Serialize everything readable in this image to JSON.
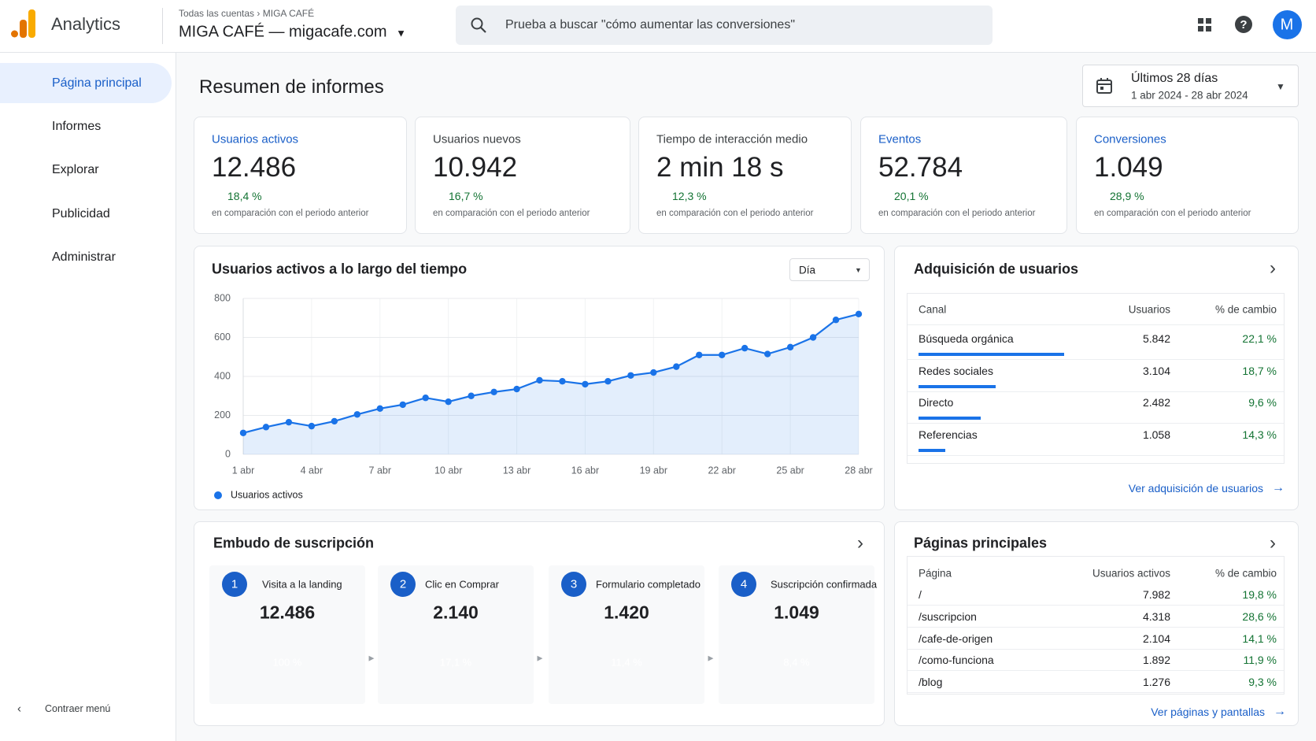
{
  "header": {
    "app": "Analytics",
    "breadcrumb": [
      "Todas las cuentas",
      "MIGA CAFÉ"
    ],
    "property": "MIGA CAFÉ — migacafe.com",
    "search_placeholder": "Prueba a buscar \"cómo aumentar las conversiones\"",
    "avatar": "M"
  },
  "nav": {
    "items": [
      "Página principal",
      "Informes",
      "Explorar",
      "Publicidad",
      "Administrar"
    ],
    "collapse": "Contraer menú"
  },
  "page": {
    "title": "Resumen de informes",
    "date_range": {
      "label": "Últimos 28 días",
      "dates": "1 abr 2024 - 28 abr 2024"
    }
  },
  "kpis": {
    "comparison_note": "en comparación con el periodo anterior",
    "cards": [
      {
        "label": "Usuarios activos",
        "value": "12.486",
        "change": "18,4 %"
      },
      {
        "label": "Usuarios nuevos",
        "value": "10.942",
        "change": "16,7 %"
      },
      {
        "label": "Tiempo de interacción medio",
        "value": "2 min 18 s",
        "change": "12,3 %"
      },
      {
        "label": "Eventos",
        "value": "52.784",
        "change": "20,1 %"
      },
      {
        "label": "Conversiones",
        "value": "1.049",
        "change": "28,9 %"
      }
    ]
  },
  "chart_data": {
    "type": "line",
    "title": "Usuarios activos a lo largo del tiempo",
    "granularity": "Día",
    "categories": [
      "1 abr",
      null,
      null,
      "4 abr",
      null,
      null,
      "7 abr",
      null,
      null,
      "10 abr",
      null,
      null,
      "13 abr",
      null,
      null,
      "16 abr",
      null,
      null,
      "19 abr",
      null,
      null,
      "22 abr",
      null,
      null,
      "25 abr",
      null,
      null,
      "28 abr"
    ],
    "series": [
      {
        "name": "Usuarios activos",
        "color": "#1a73e8",
        "values": [
          110,
          140,
          165,
          145,
          170,
          205,
          235,
          255,
          290,
          270,
          300,
          320,
          335,
          380,
          375,
          360,
          375,
          405,
          420,
          450,
          510,
          510,
          545,
          515,
          550,
          600,
          690,
          720
        ]
      }
    ],
    "ylim": [
      0,
      800
    ],
    "yticks": [
      0,
      200,
      400,
      600,
      800
    ],
    "grid": true,
    "area": true,
    "legend": "bottom-left"
  },
  "acquisition": {
    "title": "Adquisición de usuarios",
    "columns": [
      "Canal",
      "Usuarios",
      "% de cambio"
    ],
    "rows": [
      [
        "Búsqueda orgánica",
        "5.842",
        "22,1 %"
      ],
      [
        "Redes sociales",
        "3.104",
        "18,7 %"
      ],
      [
        "Directo",
        "2.482",
        "9,6 %"
      ],
      [
        "Referencias",
        "1.058",
        "14,3 %"
      ]
    ],
    "link": "Ver adquisición de usuarios"
  },
  "funnel": {
    "title": "Embudo de suscripción",
    "steps": [
      {
        "number": 1,
        "label": "Visita a la landing",
        "value": "12.486",
        "percent": "100 %"
      },
      {
        "number": 2,
        "label": "Clic en Comprar",
        "value": "2.140",
        "percent": "17,1 %"
      },
      {
        "number": 3,
        "label": "Formulario completado",
        "value": "1.420",
        "percent": "11,4 %"
      },
      {
        "number": 4,
        "label": "Suscripción confirmada",
        "value": "1.049",
        "percent": "8,4 %"
      }
    ]
  },
  "top_pages": {
    "title": "Páginas principales",
    "columns": [
      "Página",
      "Usuarios activos",
      "% de cambio"
    ],
    "rows": [
      [
        "/",
        "7.982",
        "19,8 %"
      ],
      [
        "/suscripcion",
        "4.318",
        "28,6 %"
      ],
      [
        "/cafe-de-origen",
        "2.104",
        "14,1 %"
      ],
      [
        "/como-funciona",
        "1.892",
        "11,9 %"
      ],
      [
        "/blog",
        "1.276",
        "9,3 %"
      ]
    ],
    "link": "Ver páginas y pantallas"
  }
}
